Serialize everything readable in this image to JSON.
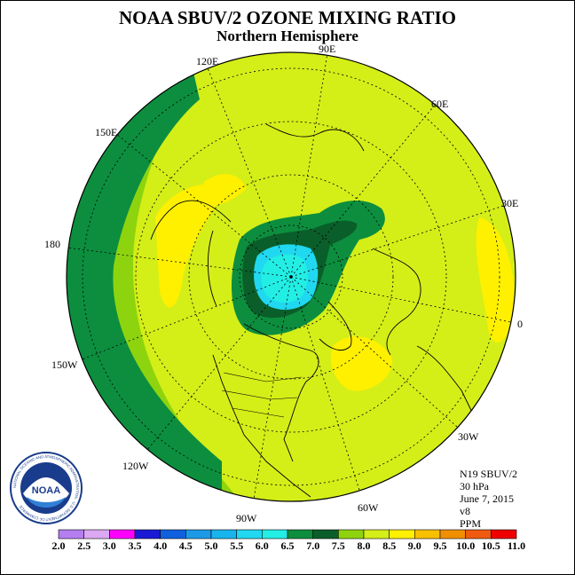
{
  "header": {
    "title": "NOAA SBUV/2 OZONE MIXING RATIO",
    "subtitle": "Northern Hemisphere"
  },
  "map": {
    "projection": "polar stereographic",
    "hemisphere": "north",
    "longitude_labels": [
      "90E",
      "120E",
      "60E",
      "150E",
      "30E",
      "180",
      "0",
      "150W",
      "30W",
      "120W",
      "60W",
      "90W"
    ],
    "max_region": "high-latitude band over Eurasia/Pacific, values 6.0–7.0 PPM (dark green)",
    "min_region": "pole, values 5.0–6.0 PPM (cyan)"
  },
  "info": {
    "satellite": "N19 SBUV/2",
    "level": "30 hPa",
    "date": "June 7, 2015",
    "version": "v8",
    "units": "PPM"
  },
  "colorbar": {
    "ticks": [
      "2.0",
      "2.5",
      "3.0",
      "3.5",
      "4.0",
      "4.5",
      "5.0",
      "5.5",
      "6.0",
      "6.5",
      "7.0",
      "7.5",
      "8.0",
      "8.5",
      "9.0",
      "9.5",
      "10.0",
      "10.5",
      "11.0"
    ],
    "colors": [
      "#b57ef0",
      "#dba8f3",
      "#ff00ff",
      "#1a1ad6",
      "#1060e0",
      "#1c9ae8",
      "#18b4ee",
      "#20d8f0",
      "#22eee4",
      "#0c8e3e",
      "#0a5e2a",
      "#8ed40e",
      "#d4ee18",
      "#fff000",
      "#f8c000",
      "#f09000",
      "#f05a10",
      "#ee0000",
      "#8b5a3c"
    ]
  },
  "logo": {
    "name": "NOAA",
    "ring_text": "NATIONAL OCEANIC AND ATMOSPHERIC ADMINISTRATION · U.S. DEPARTMENT OF COMMERCE"
  }
}
